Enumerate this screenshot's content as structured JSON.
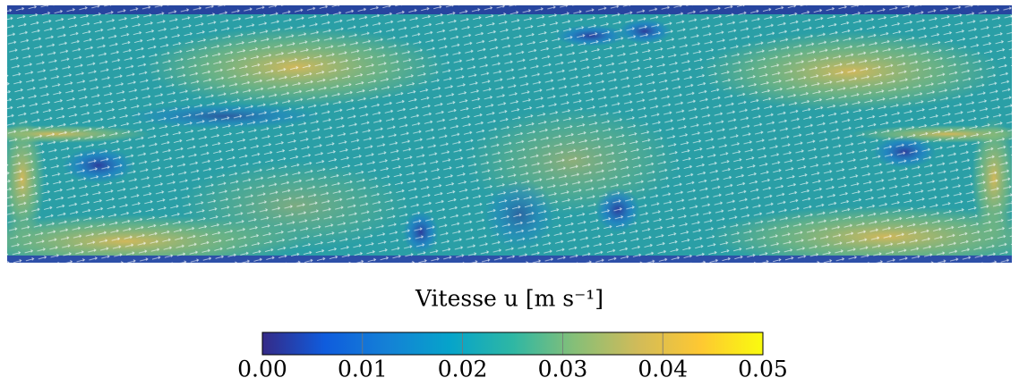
{
  "chart_data": {
    "type": "heatmap",
    "title": "Vitesse u [m s⁻¹]",
    "colorbar": {
      "lim": [
        0,
        0.05
      ],
      "ticks": [
        {
          "value": 0,
          "label": "0.00"
        },
        {
          "value": 0.01,
          "label": "0.01"
        },
        {
          "value": 0.02,
          "label": "0.02"
        },
        {
          "value": 0.03,
          "label": "0.03"
        },
        {
          "value": 0.04,
          "label": "0.04"
        },
        {
          "value": 0.05,
          "label": "0.05"
        }
      ],
      "colormap": [
        "#352a87",
        "#0f5cdd",
        "#1481d6",
        "#06a4ca",
        "#2eb7a4",
        "#87bf77",
        "#d1bb59",
        "#fec832",
        "#f9fb0e"
      ]
    }
  }
}
